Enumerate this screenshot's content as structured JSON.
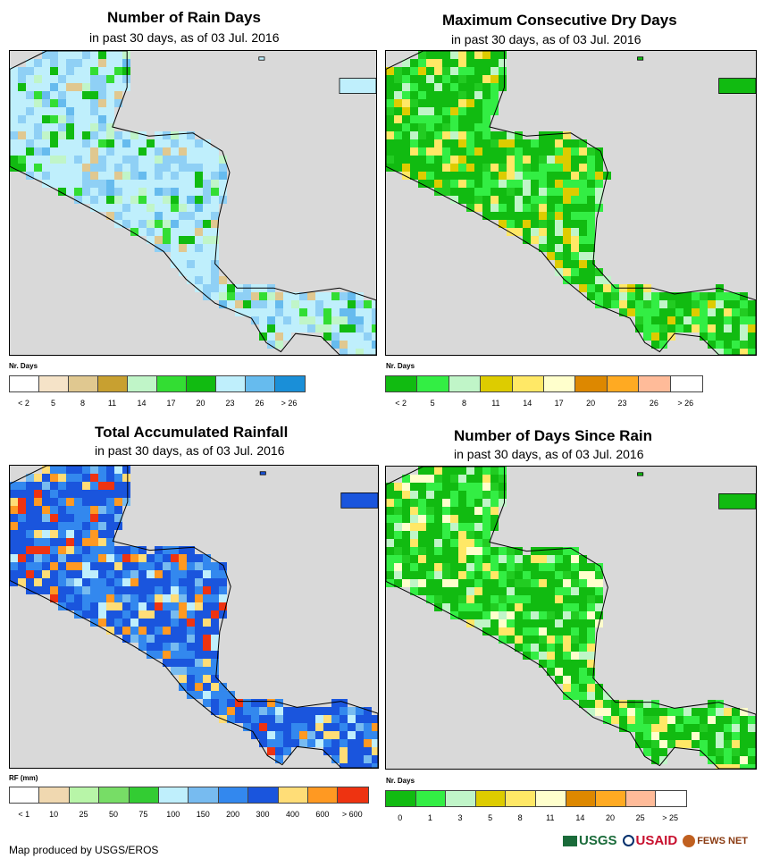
{
  "panels": [
    {
      "title": "Number of Rain Days",
      "subtitle": "in past 30 days, as of 03 Jul. 2016",
      "legend_title": "Nr. Days",
      "legend_colors": [
        "#ffffff",
        "#f5e3c8",
        "#e0c890",
        "#c8a030",
        "#c0f5c8",
        "#33dd33",
        "#11bb11",
        "#bfeffc",
        "#66bbee",
        "#1a8fd8"
      ],
      "legend_ticks": [
        "< 2",
        "5",
        "8",
        "11",
        "14",
        "17",
        "20",
        "23",
        "26",
        "> 26"
      ],
      "map_palette": [
        "#bfeffc",
        "#8fd0f5",
        "#66bbee",
        "#33dd33",
        "#11bb11",
        "#c0f5c8",
        "#e0c890"
      ]
    },
    {
      "title": "Maximum Consecutive Dry Days",
      "subtitle": "in past 30 days, as of 03 Jul. 2016",
      "legend_title": "Nr. Days",
      "legend_colors": [
        "#11bb11",
        "#33ee44",
        "#c0f5c8",
        "#ddcc00",
        "#ffe866",
        "#ffffcc",
        "#dd8800",
        "#ffaa22",
        "#ffbb99",
        "#ffffff"
      ],
      "legend_ticks": [
        "< 2",
        "5",
        "8",
        "11",
        "14",
        "17",
        "20",
        "23",
        "26",
        "> 26"
      ],
      "map_palette": [
        "#11bb11",
        "#33ee44",
        "#22cc22",
        "#c0f5c8",
        "#ddcc00",
        "#ffe866"
      ]
    },
    {
      "title": "Total Accumulated Rainfall",
      "subtitle": "in past 30 days, as of 03 Jul. 2016",
      "legend_title": "RF (mm)",
      "legend_colors": [
        "#ffffff",
        "#f0d8b0",
        "#b8f5a8",
        "#77dd66",
        "#33cc33",
        "#bfeffc",
        "#77bbf0",
        "#3388ee",
        "#1a55dd",
        "#ffdd77",
        "#ff9922",
        "#ee3311"
      ],
      "legend_ticks": [
        "< 1",
        "10",
        "25",
        "50",
        "75",
        "100",
        "150",
        "200",
        "300",
        "400",
        "600",
        "> 600"
      ],
      "map_palette": [
        "#1a55dd",
        "#3388ee",
        "#77bbf0",
        "#ff9922",
        "#ffdd77",
        "#ee3311",
        "#bfeffc"
      ]
    },
    {
      "title": "Number of Days Since Rain",
      "subtitle": "in past 30 days, as of 03 Jul. 2016",
      "legend_title": "Nr. Days",
      "legend_colors": [
        "#11bb11",
        "#33ee44",
        "#c0f5c8",
        "#ddcc00",
        "#ffe866",
        "#ffffcc",
        "#dd8800",
        "#ffaa22",
        "#ffbb99",
        "#ffffff"
      ],
      "legend_ticks": [
        "0",
        "1",
        "3",
        "5",
        "8",
        "11",
        "14",
        "20",
        "25",
        "> 25"
      ],
      "map_palette": [
        "#11bb11",
        "#33ee44",
        "#22cc22",
        "#c0f5c8",
        "#ffe866",
        "#ffffcc"
      ]
    }
  ],
  "credit": "Map produced by USGS/EROS",
  "logos": [
    "USGS",
    "USAID",
    "FEWS NET"
  ]
}
